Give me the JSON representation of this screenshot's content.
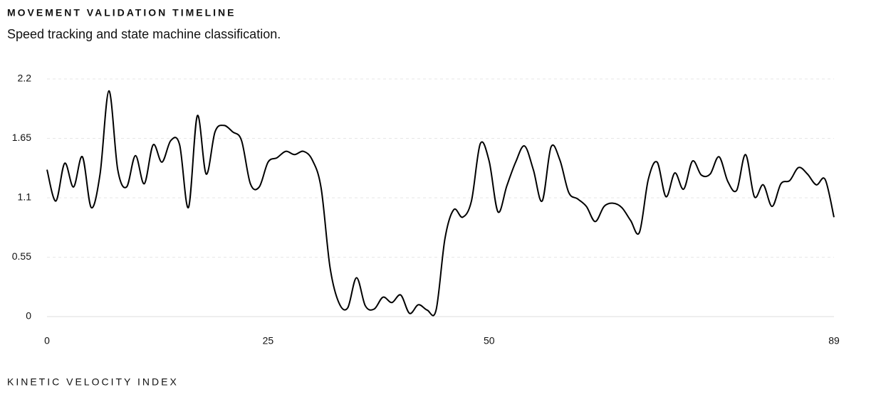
{
  "chart_data": {
    "type": "line",
    "title": "MOVEMENT VALIDATION TIMELINE",
    "subtitle": "Speed tracking and state machine classification.",
    "x_label": "KINETIC VELOCITY INDEX",
    "x": [
      0,
      1,
      2,
      3,
      4,
      5,
      6,
      7,
      8,
      9,
      10,
      11,
      12,
      13,
      14,
      15,
      16,
      17,
      18,
      19,
      20,
      21,
      22,
      23,
      24,
      25,
      26,
      27,
      28,
      29,
      30,
      31,
      32,
      33,
      34,
      35,
      36,
      37,
      38,
      39,
      40,
      41,
      42,
      43,
      44,
      45,
      46,
      47,
      48,
      49,
      50,
      51,
      52,
      53,
      54,
      55,
      56,
      57,
      58,
      59,
      60,
      61,
      62,
      63,
      64,
      65,
      66,
      67,
      68,
      69,
      70,
      71,
      72,
      73,
      74,
      75,
      76,
      77,
      78,
      79,
      80,
      81,
      82,
      83,
      84,
      85,
      86,
      87,
      88,
      89
    ],
    "values": [
      1.36,
      1.07,
      1.42,
      1.2,
      1.48,
      1.01,
      1.32,
      2.09,
      1.36,
      1.2,
      1.49,
      1.23,
      1.59,
      1.43,
      1.63,
      1.59,
      1.01,
      1.86,
      1.32,
      1.71,
      1.77,
      1.71,
      1.63,
      1.23,
      1.2,
      1.43,
      1.47,
      1.53,
      1.5,
      1.53,
      1.45,
      1.19,
      0.46,
      0.13,
      0.08,
      0.36,
      0.1,
      0.07,
      0.18,
      0.13,
      0.2,
      0.03,
      0.11,
      0.06,
      0.06,
      0.72,
      0.99,
      0.92,
      1.07,
      1.6,
      1.44,
      0.97,
      1.21,
      1.43,
      1.58,
      1.36,
      1.07,
      1.57,
      1.45,
      1.15,
      1.09,
      1.02,
      0.88,
      1.02,
      1.05,
      1.01,
      0.89,
      0.78,
      1.27,
      1.43,
      1.11,
      1.33,
      1.18,
      1.44,
      1.31,
      1.32,
      1.48,
      1.25,
      1.17,
      1.5,
      1.11,
      1.22,
      1.02,
      1.23,
      1.26,
      1.38,
      1.32,
      1.22,
      1.27,
      0.92
    ],
    "color": "#000000",
    "xlim": [
      0,
      89
    ],
    "xticks": [
      0,
      25,
      50,
      89
    ],
    "ylim": [
      0,
      2.2
    ],
    "yticks": [
      0,
      0.55,
      1.1,
      1.65,
      2.2
    ],
    "grid": true
  }
}
